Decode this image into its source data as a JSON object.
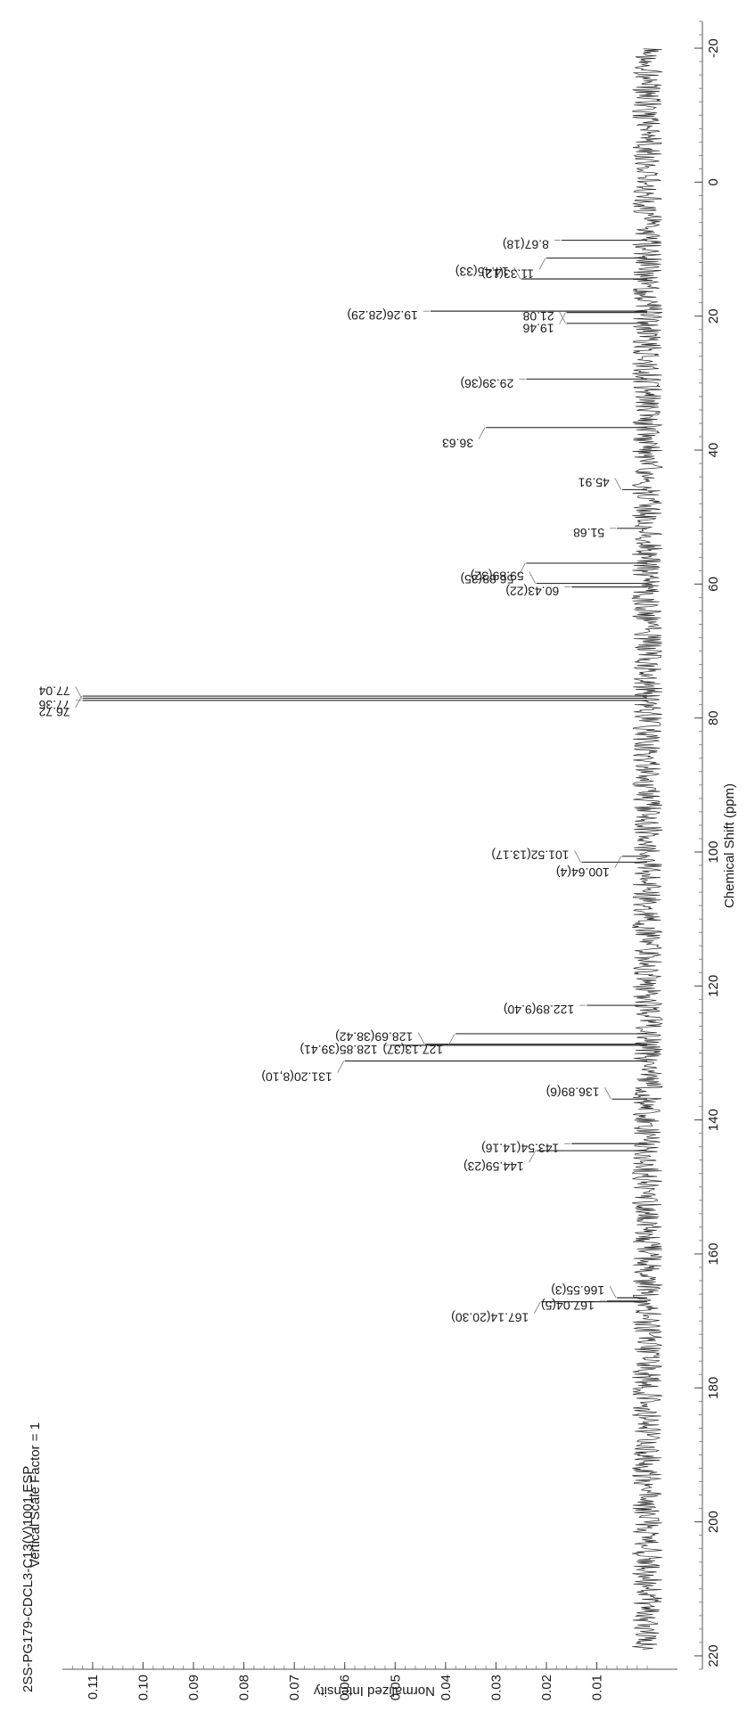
{
  "title_lines": [
    "2SS-PG179-CDCL3-C13(V)1001.ESP",
    "Vertical Scale Factor = 1"
  ],
  "chart_data": {
    "type": "line",
    "xlabel": "Chemical Shift (ppm)",
    "ylabel": "Normalized Intensity",
    "xlim": [
      222,
      -24
    ],
    "ylim": [
      -0.006,
      0.116
    ],
    "x_reversed": true,
    "grid": false,
    "x_ticks": [
      220,
      200,
      180,
      160,
      140,
      120,
      100,
      80,
      60,
      40,
      20,
      0,
      -20
    ],
    "x_tick_labels": [
      "220",
      "200",
      "180",
      "160",
      "140",
      "120",
      "100",
      "80",
      "60",
      "40",
      "20",
      "0",
      "-20"
    ],
    "y_ticks": [
      0.01,
      0.02,
      0.03,
      0.04,
      0.05,
      0.06,
      0.07,
      0.08,
      0.09,
      0.1,
      0.11
    ],
    "y_tick_labels": [
      "0.01",
      "0.02",
      "0.03",
      "0.04",
      "0.05",
      "0.06",
      "0.07",
      "0.08",
      "0.09",
      "0.10",
      "0.11"
    ],
    "noise_band": [
      -0.003,
      0.003
    ],
    "peaks": [
      {
        "x": 167.14,
        "y": 0.021,
        "label": "167.14(20.30)"
      },
      {
        "x": 167.04,
        "y": 0.008,
        "label": "167.04(5)"
      },
      {
        "x": 166.55,
        "y": 0.006,
        "label": "166.55(3)"
      },
      {
        "x": 144.59,
        "y": 0.022,
        "label": "144.59(23)"
      },
      {
        "x": 143.54,
        "y": 0.015,
        "label": "143.54(14.16)"
      },
      {
        "x": 136.89,
        "y": 0.007,
        "label": "136.89(6)"
      },
      {
        "x": 131.2,
        "y": 0.06,
        "label": "131.20(8,10)"
      },
      {
        "x": 128.85,
        "y": 0.051,
        "label": "128.85(39.41)"
      },
      {
        "x": 128.69,
        "y": 0.044,
        "label": "128.69(38.42)"
      },
      {
        "x": 127.13,
        "y": 0.038,
        "label": "127.13(37)"
      },
      {
        "x": 122.89,
        "y": 0.012,
        "label": "122.89(9.40)"
      },
      {
        "x": 101.52,
        "y": 0.013,
        "label": "101.52(13.17)"
      },
      {
        "x": 100.64,
        "y": 0.005,
        "label": "100.64(4)"
      },
      {
        "x": 77.36,
        "y": 0.112,
        "label": "77.36"
      },
      {
        "x": 77.04,
        "y": 0.112,
        "label": "77.04"
      },
      {
        "x": 76.72,
        "y": 0.112,
        "label": "76.72"
      },
      {
        "x": 60.43,
        "y": 0.015,
        "label": "60.43(22)"
      },
      {
        "x": 59.89,
        "y": 0.022,
        "label": "59.89(32)"
      },
      {
        "x": 56.88,
        "y": 0.024,
        "label": "56.88(35)"
      },
      {
        "x": 51.68,
        "y": 0.006,
        "label": "51.68"
      },
      {
        "x": 45.91,
        "y": 0.005,
        "label": "45.91"
      },
      {
        "x": 36.63,
        "y": 0.032,
        "label": "36.63"
      },
      {
        "x": 29.39,
        "y": 0.024,
        "label": "29.39(36)"
      },
      {
        "x": 21.08,
        "y": 0.016,
        "label": "21.08"
      },
      {
        "x": 19.46,
        "y": 0.016,
        "label": "19.46"
      },
      {
        "x": 19.26,
        "y": 0.043,
        "label": "19.26(28.29)"
      },
      {
        "x": 14.45,
        "y": 0.025,
        "label": "14.45(33)"
      },
      {
        "x": 11.33,
        "y": 0.02,
        "label": "11.33(12)"
      },
      {
        "x": 8.67,
        "y": 0.017,
        "label": "8.67(18)"
      }
    ]
  }
}
